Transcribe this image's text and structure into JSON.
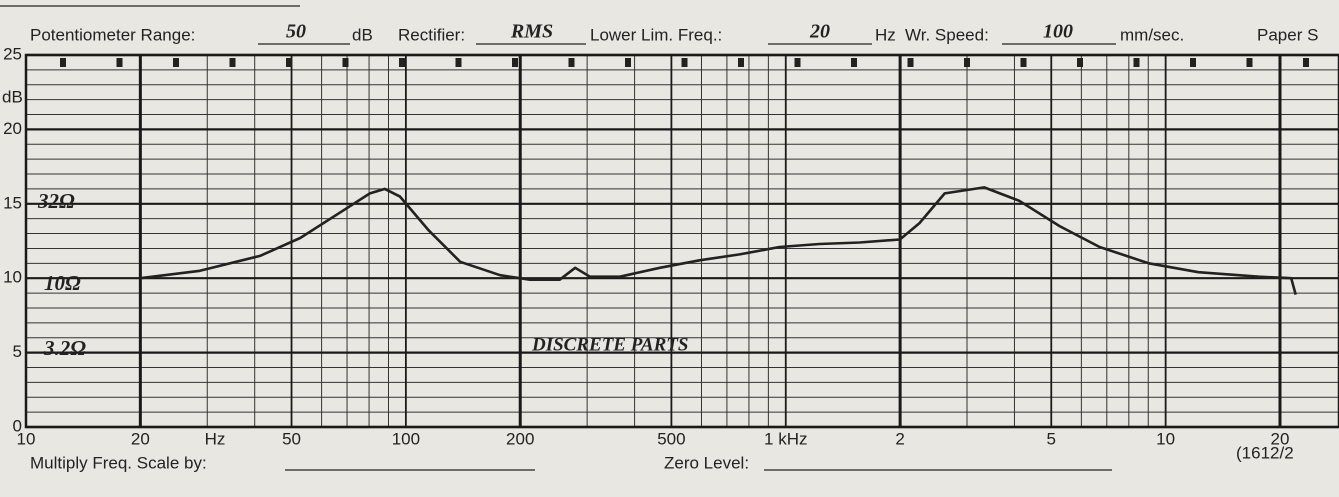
{
  "form": {
    "potentiometer_label": "Potentiometer Range:",
    "potentiometer_value": "50",
    "potentiometer_unit": "dB",
    "rectifier_label": "Rectifier:",
    "rectifier_value": "RMS",
    "lower_lim_label": "Lower Lim. Freq.:",
    "lower_lim_value": "20",
    "lower_lim_unit": "Hz",
    "speed_label": "Wr. Speed:",
    "speed_value": "100",
    "speed_unit": "mm/sec.",
    "paper_label": "Paper S",
    "multiply_label": "Multiply Freq. Scale by:",
    "zero_label": "Zero Level:",
    "code": "(1612/2"
  },
  "chart_data": {
    "type": "line",
    "xscale": "log",
    "ylabel": "dB",
    "xunit": "Hz",
    "grid": true,
    "xlim": [
      10,
      28600
    ],
    "ylim": [
      0,
      25
    ],
    "yticks": [
      0,
      5,
      10,
      15,
      20,
      25
    ],
    "yminor_ticks": [
      1,
      2,
      3,
      4,
      6,
      7,
      8,
      9,
      11,
      12,
      13,
      14,
      16,
      17,
      18,
      19,
      21,
      22,
      23,
      24
    ],
    "xticks": [
      10,
      20,
      50,
      100,
      200,
      500,
      {
        "value": 1000,
        "label": "1 kHz"
      },
      {
        "value": 2000,
        "label": "2"
      },
      {
        "value": 5000,
        "label": "5"
      },
      {
        "value": 10000,
        "label": "10"
      },
      {
        "value": 20000,
        "label": "20"
      }
    ],
    "xminor_ticks": [
      30,
      40,
      60,
      70,
      80,
      90,
      300,
      400,
      600,
      700,
      800,
      900,
      3000,
      4000,
      6000,
      7000,
      8000,
      9000
    ],
    "annotations": [
      "32Ω",
      "10Ω",
      "3.2Ω",
      "DISCRETE PARTS"
    ],
    "series": [
      {
        "color": "#222222",
        "x": [
          20,
          28.7,
          41.3,
          52.7,
          67,
          80.4,
          88,
          96.4,
          115,
          139,
          177,
          212,
          254,
          279,
          305,
          366,
          466,
          593,
          756,
          963,
          1227,
          1565,
          1997,
          2250,
          2620,
          3330,
          4120,
          5260,
          6700,
          9030,
          12200,
          17600,
          21400,
          22000
        ],
        "values": [
          10,
          10.5,
          11.5,
          12.7,
          14.4,
          15.7,
          16.0,
          15.5,
          13.2,
          11.1,
          10.2,
          9.9,
          9.9,
          10.7,
          10.1,
          10.1,
          10.7,
          11.2,
          11.6,
          12.1,
          12.3,
          12.4,
          12.6,
          13.7,
          15.7,
          16.1,
          15.2,
          13.5,
          12.1,
          11.0,
          10.4,
          10.1,
          10.0,
          8.9
        ]
      }
    ]
  }
}
